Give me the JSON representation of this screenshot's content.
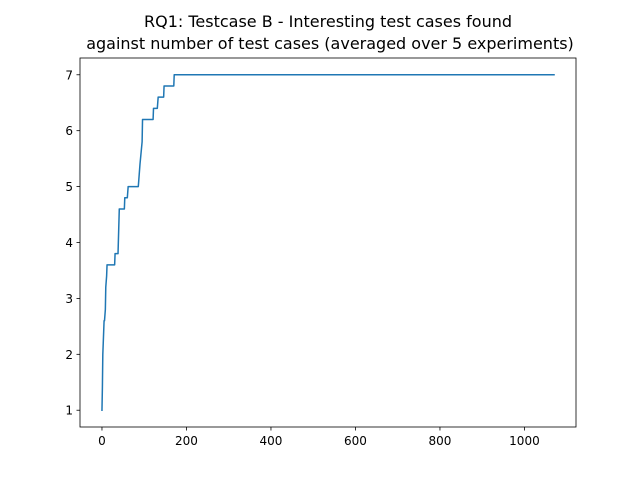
{
  "chart_data": {
    "type": "line",
    "title_lines": [
      "RQ1: Testcase B - Interesting test cases found",
      "against number of test cases (averaged over 5 experiments)"
    ],
    "xlabel": "",
    "ylabel": "",
    "xlim": [
      -52,
      1122
    ],
    "ylim": [
      0.7,
      7.3
    ],
    "xticks": [
      0,
      200,
      400,
      600,
      800,
      1000
    ],
    "yticks": [
      1,
      2,
      3,
      4,
      5,
      6,
      7
    ],
    "grid": false,
    "legend": "none",
    "series": [
      {
        "color": "#1f77b4",
        "points": [
          [
            0,
            1.0
          ],
          [
            1,
            1.4
          ],
          [
            2,
            2.0
          ],
          [
            3,
            2.2
          ],
          [
            4,
            2.4
          ],
          [
            5,
            2.6
          ],
          [
            6,
            2.6
          ],
          [
            8,
            2.8
          ],
          [
            9,
            3.2
          ],
          [
            11,
            3.4
          ],
          [
            12,
            3.6
          ],
          [
            30,
            3.6
          ],
          [
            31,
            3.8
          ],
          [
            38,
            3.8
          ],
          [
            41,
            4.6
          ],
          [
            53,
            4.6
          ],
          [
            54,
            4.8
          ],
          [
            60,
            4.8
          ],
          [
            62,
            5.0
          ],
          [
            86,
            5.0
          ],
          [
            90,
            5.4
          ],
          [
            95,
            5.8
          ],
          [
            96,
            6.2
          ],
          [
            121,
            6.2
          ],
          [
            122,
            6.4
          ],
          [
            131,
            6.4
          ],
          [
            133,
            6.6
          ],
          [
            146,
            6.6
          ],
          [
            147,
            6.8
          ],
          [
            170,
            6.8
          ],
          [
            171,
            7.0
          ],
          [
            1070,
            7.0
          ]
        ]
      }
    ]
  }
}
